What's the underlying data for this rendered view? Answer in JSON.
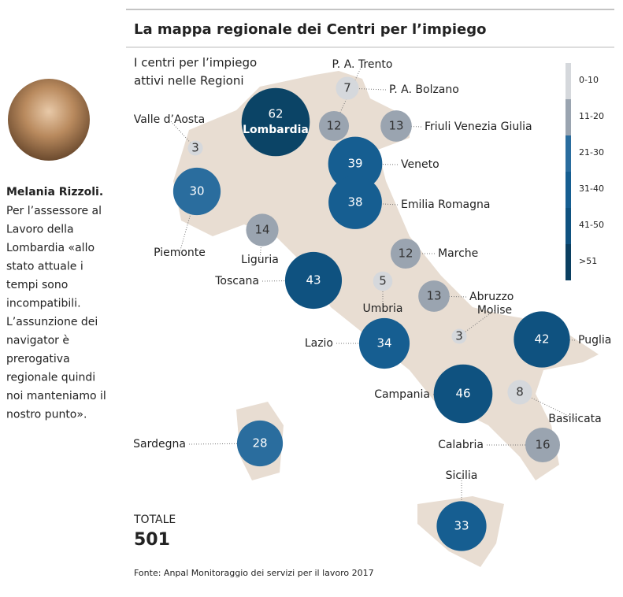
{
  "header": {
    "title": "La mappa regionale dei Centri per l’impiego",
    "subtitle": [
      "I centri per l’impiego",
      "attivi nelle Regioni"
    ]
  },
  "sidebar": {
    "name": "Melania Rizzoli.",
    "lines": [
      "Per l’assessore al",
      "Lavoro della",
      "Lombardia «allo",
      "stato attuale i",
      "tempi sono",
      "incompatibili.",
      "L’assunzione dei",
      "navigator è",
      "prerogativa",
      "regionale quindi",
      "noi manteniamo il",
      "nostro punto»."
    ]
  },
  "regions": [
    {
      "name": "Valle d’Aosta",
      "value": 3,
      "color": "#d5d8dc"
    },
    {
      "name": "Lombardia",
      "value": 62,
      "color": "#0b4466"
    },
    {
      "name": "P. A. Trento",
      "value": 12,
      "color": "#9aa4b0"
    },
    {
      "name": "P. A. Bolzano",
      "value": 7,
      "color": "#d5d8dc"
    },
    {
      "name": "Friuli Venezia Giulia",
      "value": 13,
      "color": "#9aa4b0"
    },
    {
      "name": "Veneto",
      "value": 39,
      "color": "#165e91"
    },
    {
      "name": "Emilia Romagna",
      "value": 38,
      "color": "#165e91"
    },
    {
      "name": "Piemonte",
      "value": 30,
      "color": "#2a6d9e"
    },
    {
      "name": "Liguria",
      "value": 14,
      "color": "#9aa4b0"
    },
    {
      "name": "Toscana",
      "value": 43,
      "color": "#0f5280"
    },
    {
      "name": "Marche",
      "value": 12,
      "color": "#9aa4b0"
    },
    {
      "name": "Umbria",
      "value": 5,
      "color": "#d5d8dc"
    },
    {
      "name": "Abruzzo",
      "value": 13,
      "color": "#9aa4b0"
    },
    {
      "name": "Molise",
      "value": 3,
      "color": "#d5d8dc"
    },
    {
      "name": "Lazio",
      "value": 34,
      "color": "#165e91"
    },
    {
      "name": "Puglia",
      "value": 42,
      "color": "#0f5280"
    },
    {
      "name": "Campania",
      "value": 46,
      "color": "#0f5280"
    },
    {
      "name": "Basilicata",
      "value": 8,
      "color": "#d5d8dc"
    },
    {
      "name": "Calabria",
      "value": 16,
      "color": "#9aa4b0"
    },
    {
      "name": "Sardegna",
      "value": 28,
      "color": "#2a6d9e"
    },
    {
      "name": "Sicilia",
      "value": 33,
      "color": "#165e91"
    }
  ],
  "legend": [
    {
      "label": "0-10",
      "color": "#d5d8dc"
    },
    {
      "label": "11-20",
      "color": "#9aa4b0"
    },
    {
      "label": "21-30",
      "color": "#2a6d9e"
    },
    {
      "label": "31-40",
      "color": "#165e91"
    },
    {
      "label": "41-50",
      "color": "#0f5280"
    },
    {
      "label": ">51",
      "color": "#0b3f61"
    }
  ],
  "total": {
    "label": "TOTALE",
    "value": 501
  },
  "source": "Fonte: Anpal Monitoraggio dei servizi per il lavoro 2017"
}
